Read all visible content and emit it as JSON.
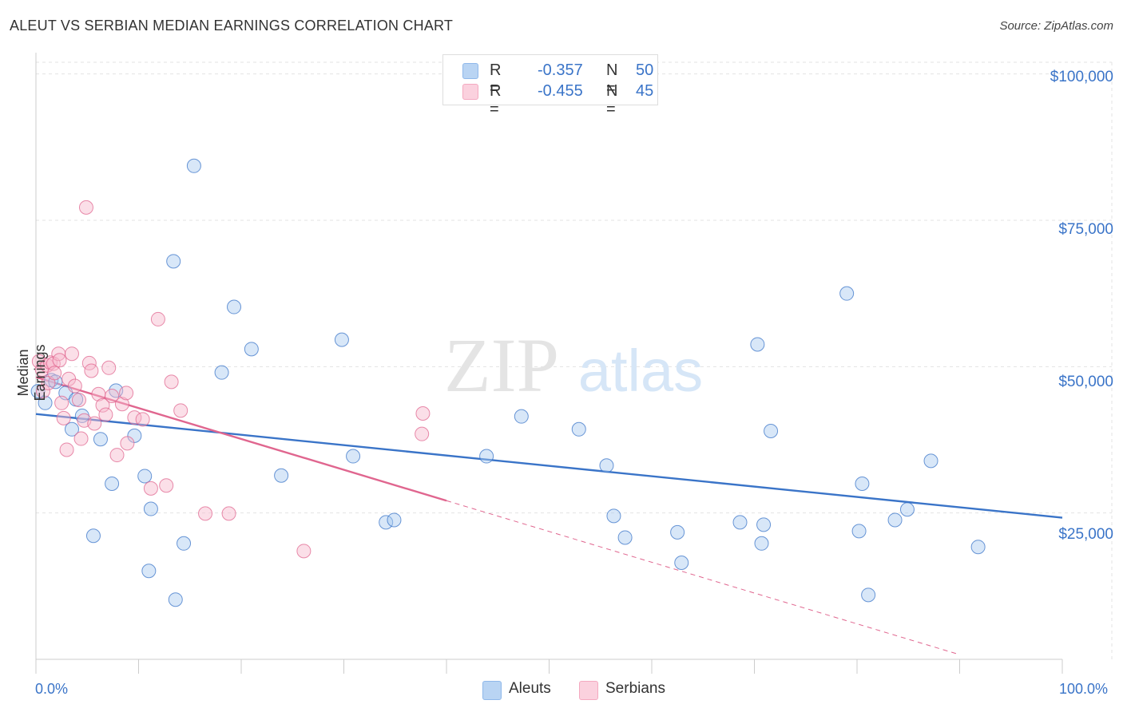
{
  "title": "ALEUT VS SERBIAN MEDIAN EARNINGS CORRELATION CHART",
  "source": "Source: ZipAtlas.com",
  "watermark": {
    "zip": "ZIP",
    "atlas": "atlas"
  },
  "legend": {
    "rows": [
      {
        "r_label": "R =",
        "r_value": "-0.357",
        "n_label": "N =",
        "n_value": "50",
        "color": "#8fb8ea"
      },
      {
        "r_label": "R =",
        "r_value": "-0.455",
        "n_label": "N =",
        "n_value": "45",
        "color": "#f4a9c0"
      }
    ]
  },
  "bottom_legend": [
    {
      "label": "Aleuts",
      "color": "#8fb8ea"
    },
    {
      "label": "Serbians",
      "color": "#f4a9c0"
    }
  ],
  "chart_data": {
    "type": "scatter",
    "xlabel": "",
    "ylabel": "Median Earnings",
    "x_tick_labels": [
      "0.0%",
      "100.0%"
    ],
    "y_tick_labels": [
      "$25,000",
      "$50,000",
      "$75,000",
      "$100,000"
    ],
    "y_ticks": [
      25000,
      50000,
      75000,
      100000
    ],
    "xlim": [
      0,
      100
    ],
    "ylim": [
      0,
      102000
    ],
    "grid": true,
    "series": [
      {
        "name": "Aleuts",
        "color": "#3a74c8",
        "fill": "#a9c9ef",
        "points": [
          [
            0.2,
            45800
          ],
          [
            0.9,
            43800
          ],
          [
            1.5,
            47700
          ],
          [
            1.9,
            47400
          ],
          [
            2.9,
            45500
          ],
          [
            3.5,
            39300
          ],
          [
            3.9,
            44400
          ],
          [
            4.5,
            41600
          ],
          [
            5.6,
            21100
          ],
          [
            6.3,
            37600
          ],
          [
            7.4,
            30000
          ],
          [
            7.8,
            45900
          ],
          [
            9.6,
            38200
          ],
          [
            10.6,
            31300
          ],
          [
            11.0,
            15100
          ],
          [
            11.2,
            25700
          ],
          [
            13.4,
            68000
          ],
          [
            13.6,
            10200
          ],
          [
            14.4,
            19800
          ],
          [
            15.4,
            84300
          ],
          [
            18.1,
            49000
          ],
          [
            19.3,
            60200
          ],
          [
            21.0,
            53000
          ],
          [
            23.9,
            31400
          ],
          [
            29.8,
            54600
          ],
          [
            30.9,
            34700
          ],
          [
            34.1,
            23400
          ],
          [
            34.9,
            23800
          ],
          [
            43.9,
            34700
          ],
          [
            47.3,
            41500
          ],
          [
            52.9,
            39300
          ],
          [
            55.6,
            33100
          ],
          [
            56.3,
            24500
          ],
          [
            57.4,
            20800
          ],
          [
            62.5,
            21700
          ],
          [
            62.9,
            16500
          ],
          [
            68.6,
            23400
          ],
          [
            70.3,
            53800
          ],
          [
            70.7,
            19800
          ],
          [
            70.9,
            23000
          ],
          [
            71.6,
            39000
          ],
          [
            79.0,
            62500
          ],
          [
            80.2,
            21900
          ],
          [
            80.5,
            30000
          ],
          [
            81.1,
            11000
          ],
          [
            83.7,
            23800
          ],
          [
            84.9,
            25600
          ],
          [
            87.2,
            33900
          ],
          [
            91.8,
            19200
          ],
          [
            0.0,
            0
          ]
        ]
      },
      {
        "name": "Serbians",
        "color": "#e0668f",
        "fill": "#f6b9cd",
        "points": [
          [
            0.3,
            50900
          ],
          [
            0.6,
            49500
          ],
          [
            0.7,
            45800
          ],
          [
            1.1,
            50200
          ],
          [
            1.2,
            47200
          ],
          [
            1.4,
            50700
          ],
          [
            1.7,
            50500
          ],
          [
            1.8,
            48900
          ],
          [
            2.2,
            52200
          ],
          [
            2.3,
            51100
          ],
          [
            2.5,
            43800
          ],
          [
            2.7,
            41200
          ],
          [
            3.0,
            35800
          ],
          [
            3.2,
            47900
          ],
          [
            3.5,
            52200
          ],
          [
            3.8,
            46700
          ],
          [
            4.2,
            44300
          ],
          [
            4.4,
            37700
          ],
          [
            4.7,
            40800
          ],
          [
            4.9,
            77200
          ],
          [
            5.2,
            50600
          ],
          [
            5.4,
            49300
          ],
          [
            5.7,
            40300
          ],
          [
            6.1,
            45300
          ],
          [
            6.5,
            43400
          ],
          [
            6.8,
            41800
          ],
          [
            7.1,
            49800
          ],
          [
            7.4,
            45000
          ],
          [
            7.9,
            34900
          ],
          [
            8.4,
            43600
          ],
          [
            8.8,
            45500
          ],
          [
            8.9,
            36900
          ],
          [
            9.6,
            41300
          ],
          [
            10.4,
            41000
          ],
          [
            11.2,
            29200
          ],
          [
            11.9,
            58100
          ],
          [
            12.7,
            29700
          ],
          [
            13.2,
            47400
          ],
          [
            14.1,
            42500
          ],
          [
            16.5,
            24900
          ],
          [
            18.8,
            24900
          ],
          [
            26.1,
            18500
          ],
          [
            37.6,
            38500
          ],
          [
            37.7,
            42000
          ],
          [
            0.0,
            0
          ]
        ]
      }
    ],
    "trend_lines": [
      {
        "series": "Aleuts",
        "x": [
          0,
          100
        ],
        "y": [
          41900,
          24200
        ],
        "style": "solid"
      },
      {
        "series": "Serbians",
        "x": [
          0,
          40
        ],
        "y": [
          48200,
          27100
        ],
        "style": "solid"
      },
      {
        "series": "Serbians",
        "x": [
          40,
          90
        ],
        "y": [
          27100,
          800
        ],
        "style": "dashed"
      }
    ]
  }
}
